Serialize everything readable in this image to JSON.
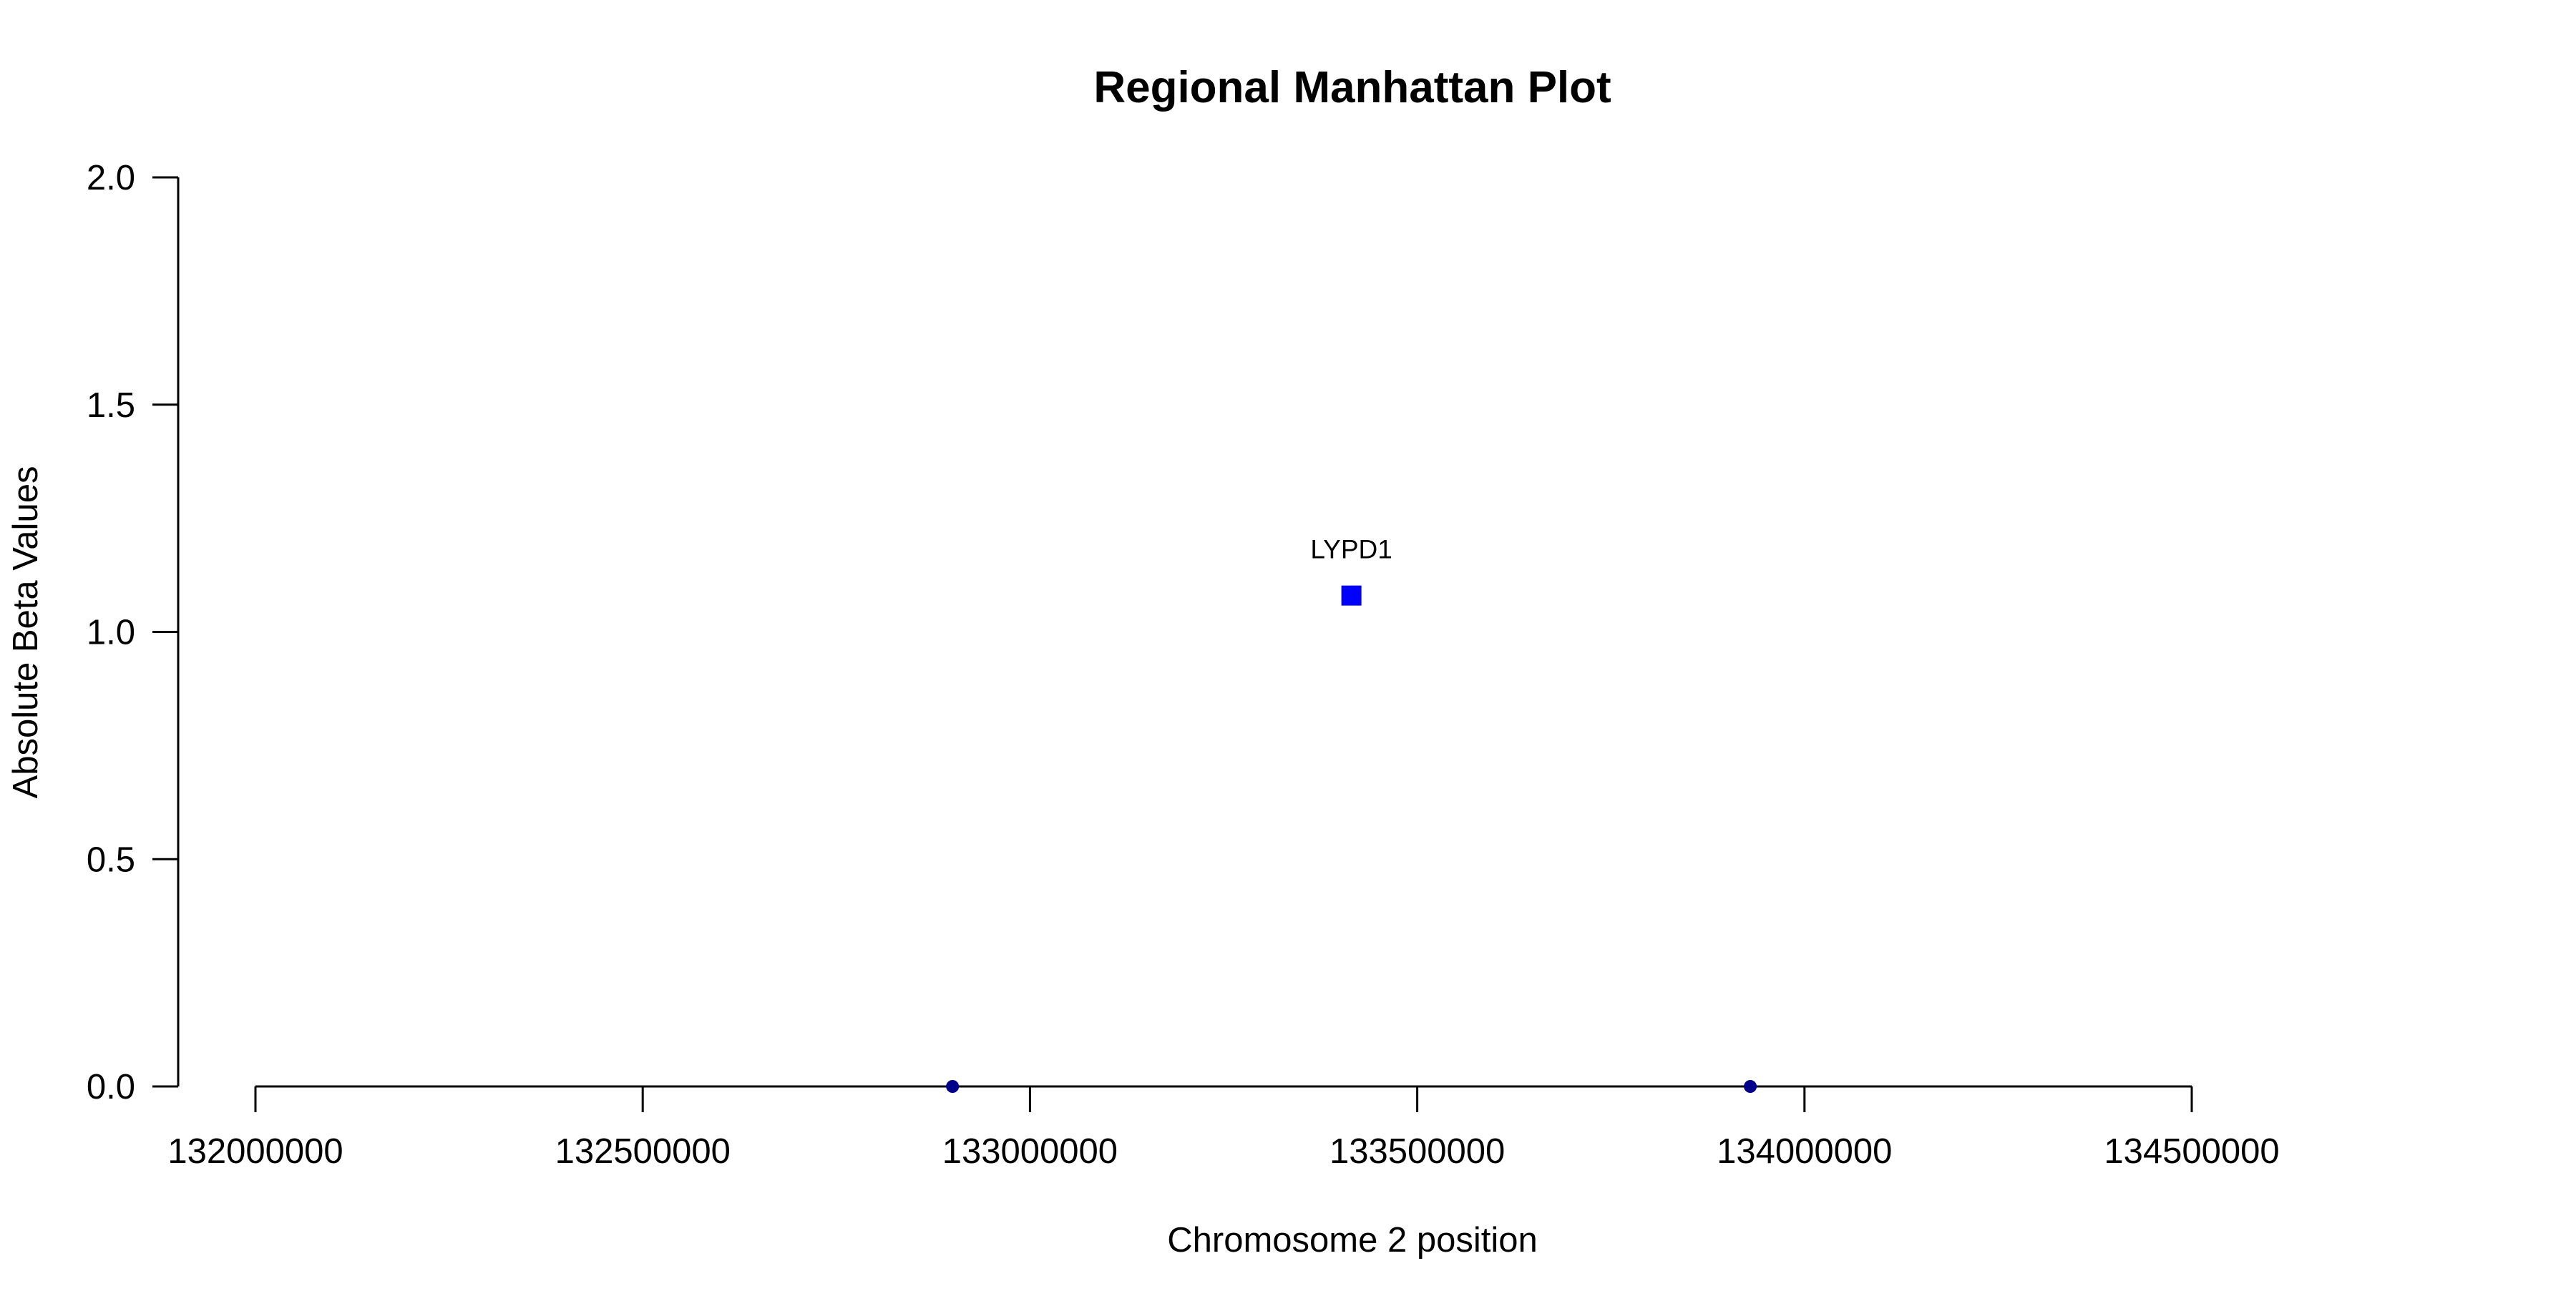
{
  "chart_data": {
    "type": "scatter",
    "title": "Regional Manhattan Plot",
    "xlabel": "Chromosome 2 position",
    "ylabel": "Absolute Beta Values",
    "xlim": [
      132000000,
      134500000
    ],
    "ylim": [
      0,
      2
    ],
    "x_ticks": [
      132000000,
      132500000,
      133000000,
      133500000,
      134000000,
      134500000
    ],
    "x_tick_labels": [
      "132000000",
      "132500000",
      "133000000",
      "133500000",
      "134000000",
      "134500000"
    ],
    "y_ticks": [
      0,
      0.5,
      1,
      1.5,
      2
    ],
    "y_tick_labels": [
      "0.0",
      "0.5",
      "1.0",
      "1.5",
      "2.0"
    ],
    "grid": false,
    "points": [
      {
        "x": 132900000,
        "y": 0,
        "shape": "circle",
        "color": "#00008b",
        "label": ""
      },
      {
        "x": 133930000,
        "y": 0,
        "shape": "circle",
        "color": "#00008b",
        "label": ""
      },
      {
        "x": 133415000,
        "y": 1.08,
        "shape": "square",
        "color": "#0000ff",
        "label": "LYPD1"
      }
    ]
  }
}
